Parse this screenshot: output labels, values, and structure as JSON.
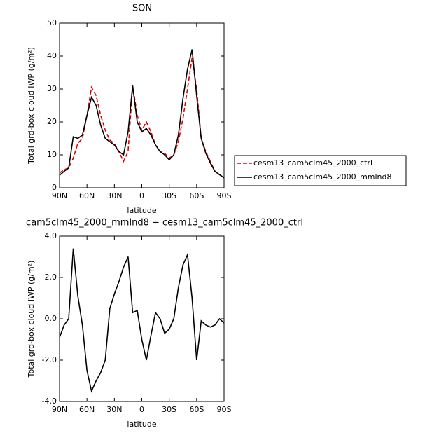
{
  "chart_data": [
    {
      "type": "line",
      "title": "SON",
      "xlabel": "latitude",
      "ylabel": "Total grd-box cloud IWP (g/m²)",
      "x": [
        90,
        85,
        80,
        75,
        70,
        65,
        60,
        55,
        50,
        45,
        40,
        35,
        30,
        25,
        20,
        15,
        10,
        5,
        0,
        -5,
        -10,
        -15,
        -20,
        -25,
        -30,
        -35,
        -40,
        -45,
        -50,
        -55,
        -60,
        -65,
        -70,
        -75,
        -80,
        -85,
        -90
      ],
      "series": [
        {
          "name": "cesm13_cam5clm45_2000_ctrl",
          "color": "#e00000",
          "dashed": true,
          "values": [
            4.5,
            5.5,
            6,
            9,
            13.5,
            15,
            22,
            30.5,
            28,
            22,
            17.5,
            14.5,
            13.5,
            11,
            8,
            11,
            31,
            22,
            17.5,
            20,
            17,
            13,
            11,
            10.5,
            9,
            10,
            14,
            21,
            30,
            39.5,
            30,
            15,
            11,
            8,
            5,
            4,
            3
          ]
        },
        {
          "name": "cesm13_cam5clm45_2000_mmlnd8",
          "color": "#000000",
          "dashed": false,
          "values": [
            3.8,
            5,
            6,
            15.5,
            15,
            16,
            22,
            27.5,
            25,
            19,
            15,
            14,
            13,
            11,
            10,
            17,
            31,
            20,
            17,
            18,
            16,
            13,
            11,
            10,
            8.5,
            10,
            16,
            27,
            36,
            42,
            28,
            15,
            10.5,
            7.5,
            5,
            4,
            3
          ]
        }
      ],
      "xlim": [
        90,
        -90
      ],
      "xticks": [
        {
          "value": 90,
          "label": "90N"
        },
        {
          "value": 60,
          "label": "60N"
        },
        {
          "value": 30,
          "label": "30N"
        },
        0,
        {
          "value": -30,
          "label": "30S"
        },
        {
          "value": -60,
          "label": "60S"
        },
        {
          "value": -90,
          "label": "90S"
        }
      ],
      "ylim": [
        0,
        50
      ],
      "yticks": [
        0,
        10,
        20,
        30,
        40,
        50
      ],
      "legend": "right"
    },
    {
      "type": "line",
      "title": "cam5clm45_2000_mmlnd8 − cesm13_cam5clm45_2000_ctrl",
      "xlabel": "latitude",
      "ylabel": "Total grd-box cloud IWP (g/m²)",
      "x": [
        90,
        85,
        80,
        75,
        70,
        65,
        60,
        55,
        50,
        45,
        40,
        35,
        30,
        25,
        20,
        15,
        10,
        5,
        0,
        -5,
        -10,
        -15,
        -20,
        -25,
        -30,
        -35,
        -40,
        -45,
        -50,
        -55,
        -60,
        -65,
        -70,
        -75,
        -80,
        -85,
        -90
      ],
      "color": "#000000",
      "values": [
        -0.9,
        -0.3,
        0.0,
        3.4,
        1.1,
        -0.3,
        -2.5,
        -3.5,
        -3.0,
        -2.6,
        -2.0,
        0.5,
        1.2,
        1.8,
        2.5,
        3.0,
        0.3,
        0.4,
        -1.0,
        -2.0,
        -0.8,
        0.3,
        0.0,
        -0.7,
        -0.5,
        0.0,
        1.5,
        2.6,
        3.1,
        1.0,
        -2.0,
        -0.1,
        -0.3,
        -0.4,
        -0.3,
        0.0,
        -0.2
      ],
      "xlim": [
        90,
        -90
      ],
      "xticks": [
        {
          "value": 90,
          "label": "90N"
        },
        {
          "value": 60,
          "label": "60N"
        },
        {
          "value": 30,
          "label": "30N"
        },
        0,
        {
          "value": -30,
          "label": "30S"
        },
        {
          "value": -60,
          "label": "60S"
        },
        {
          "value": -90,
          "label": "90S"
        }
      ],
      "ylim": [
        -4,
        4
      ],
      "yticks": [
        {
          "value": -4,
          "label": "-4.0"
        },
        {
          "value": -2,
          "label": "-2.0"
        },
        {
          "value": 0,
          "label": "0.0"
        },
        {
          "value": 2,
          "label": "2.0"
        },
        {
          "value": 4,
          "label": "4.0"
        }
      ]
    }
  ]
}
